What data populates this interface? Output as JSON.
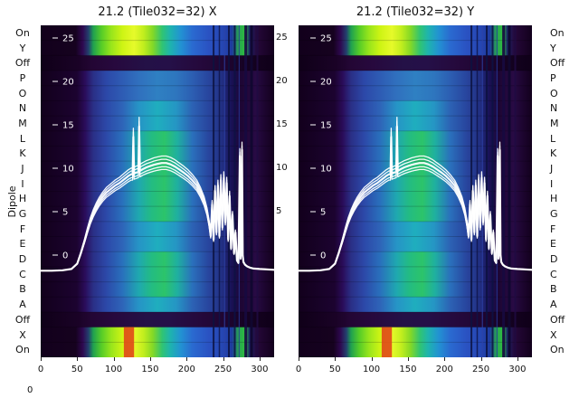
{
  "left_axis": {
    "label": "Dipole"
  },
  "dipole_labels": [
    "On",
    "Y",
    "Off",
    "P",
    "O",
    "N",
    "M",
    "L",
    "K",
    "J",
    "I",
    "H",
    "G",
    "F",
    "E",
    "D",
    "C",
    "B",
    "A",
    "Off",
    "X",
    "On"
  ],
  "bottom_left_label": "0",
  "chart_data": {
    "type": "heatmap",
    "panels": [
      {
        "title": "21.2 (Tile032=32) X"
      },
      {
        "title": "21.2 (Tile032=32) Y"
      }
    ],
    "x_ticks": [
      0,
      50,
      100,
      150,
      200,
      250,
      300
    ],
    "x_range": [
      0,
      320
    ],
    "power_ticks": [
      25,
      20,
      15,
      10,
      5,
      0
    ],
    "right_axis_ticks": [
      25,
      20,
      15,
      10,
      5
    ],
    "legend": "none",
    "grid": "off",
    "colors": {
      "line": "#ffffff",
      "bg": "#12001c"
    },
    "row_assignment": [
      "on",
      "on",
      "off",
      "mid1",
      "mid1",
      "mid2",
      "mid2",
      "mid3",
      "mid3",
      "mid3",
      "mid3",
      "mid3",
      "mid3",
      "mid2",
      "mid2",
      "mid3",
      "mid3",
      "mid3",
      "mid2",
      "off",
      "on",
      "on"
    ],
    "row_types": {
      "on": [
        [
          0.0,
          "#12001c"
        ],
        [
          0.15,
          "#16021f"
        ],
        [
          0.18,
          "#2e0850"
        ],
        [
          0.205,
          "#23406e"
        ],
        [
          0.225,
          "#1fa050"
        ],
        [
          0.26,
          "#55cc28"
        ],
        [
          0.3,
          "#96e41c"
        ],
        [
          0.35,
          "#cef414"
        ],
        [
          0.4,
          "#e6fa2a"
        ],
        [
          0.44,
          "#c2ee1e"
        ],
        [
          0.48,
          "#84d826"
        ],
        [
          0.52,
          "#30c472"
        ],
        [
          0.555,
          "#1eb4ae"
        ],
        [
          0.6,
          "#2292d2"
        ],
        [
          0.65,
          "#2a6ad0"
        ],
        [
          0.72,
          "#2a52c2"
        ],
        [
          0.78,
          "#2546b2"
        ],
        [
          0.82,
          "#1e3a9e"
        ],
        [
          0.845,
          "#26a055"
        ],
        [
          0.875,
          "#2fbe3f"
        ],
        [
          0.895,
          "#1b2468"
        ],
        [
          0.925,
          "#26083a"
        ],
        [
          1.0,
          "#12001c"
        ]
      ],
      "off": [
        [
          0.0,
          "#0f0018"
        ],
        [
          0.16,
          "#1a0226"
        ],
        [
          0.22,
          "#230634"
        ],
        [
          0.32,
          "#27093e"
        ],
        [
          0.45,
          "#241147"
        ],
        [
          0.55,
          "#251048"
        ],
        [
          0.68,
          "#25093c"
        ],
        [
          0.8,
          "#1e0530"
        ],
        [
          0.88,
          "#150222"
        ],
        [
          1.0,
          "#0f0018"
        ]
      ],
      "mid1": [
        [
          0.0,
          "#12001c"
        ],
        [
          0.155,
          "#1c0330"
        ],
        [
          0.19,
          "#2a0c5a"
        ],
        [
          0.225,
          "#2a2f86"
        ],
        [
          0.28,
          "#2c48a8"
        ],
        [
          0.35,
          "#2e5cb4"
        ],
        [
          0.42,
          "#3070be"
        ],
        [
          0.5,
          "#2f80c2"
        ],
        [
          0.58,
          "#2e76be"
        ],
        [
          0.65,
          "#2c5eb2"
        ],
        [
          0.72,
          "#28459e"
        ],
        [
          0.775,
          "#223084"
        ],
        [
          0.815,
          "#191258"
        ],
        [
          0.86,
          "#1e0634"
        ],
        [
          0.92,
          "#280a44"
        ],
        [
          1.0,
          "#12001c"
        ]
      ],
      "mid2": [
        [
          0.0,
          "#12001c"
        ],
        [
          0.155,
          "#1c0330"
        ],
        [
          0.19,
          "#2a0c5a"
        ],
        [
          0.225,
          "#2a2f86"
        ],
        [
          0.28,
          "#2c48a8"
        ],
        [
          0.35,
          "#2e64b8"
        ],
        [
          0.42,
          "#2694c6"
        ],
        [
          0.5,
          "#1faebe"
        ],
        [
          0.58,
          "#2596c4"
        ],
        [
          0.65,
          "#2c62b4"
        ],
        [
          0.72,
          "#28459e"
        ],
        [
          0.775,
          "#223084"
        ],
        [
          0.815,
          "#191258"
        ],
        [
          0.86,
          "#1e0634"
        ],
        [
          0.92,
          "#280a44"
        ],
        [
          1.0,
          "#12001c"
        ]
      ],
      "mid3": [
        [
          0.0,
          "#12001c"
        ],
        [
          0.155,
          "#1c0330"
        ],
        [
          0.19,
          "#2a0c5a"
        ],
        [
          0.225,
          "#2a2f86"
        ],
        [
          0.28,
          "#2c48a8"
        ],
        [
          0.35,
          "#2970bc"
        ],
        [
          0.42,
          "#1fa8b0"
        ],
        [
          0.475,
          "#23bc82"
        ],
        [
          0.53,
          "#2cc46a"
        ],
        [
          0.585,
          "#1fb0a0"
        ],
        [
          0.65,
          "#2a70bc"
        ],
        [
          0.72,
          "#28459e"
        ],
        [
          0.775,
          "#223084"
        ],
        [
          0.815,
          "#191258"
        ],
        [
          0.86,
          "#1e0634"
        ],
        [
          0.92,
          "#280a44"
        ],
        [
          1.0,
          "#12001c"
        ]
      ]
    },
    "artifacts": {
      "vlines": [
        {
          "x": 237,
          "color": "#0c1240",
          "w": 2,
          "o": 0.85
        },
        {
          "x": 245,
          "color": "#0e1448",
          "w": 1.5,
          "o": 0.8
        },
        {
          "x": 252,
          "color": "#2e44aa",
          "w": 1,
          "o": 0.9
        },
        {
          "x": 258,
          "color": "#0c1240",
          "w": 2,
          "o": 0.85
        },
        {
          "x": 266,
          "color": "#0d1244",
          "w": 2,
          "o": 0.85
        },
        {
          "x": 272,
          "color": "#26399a",
          "w": 1,
          "o": 0.9
        },
        {
          "x": 281,
          "color": "#160a40",
          "w": 3,
          "o": 0.9
        },
        {
          "x": 289,
          "color": "#100730",
          "w": 3,
          "o": 0.95
        },
        {
          "x": 297,
          "color": "#200b42",
          "w": 2,
          "o": 0.85
        }
      ],
      "spots": [
        {
          "x0": 114,
          "x1": 128,
          "row0": 20,
          "row1": 22,
          "color": "#e04818"
        }
      ]
    },
    "series": {
      "points": [
        [
          0,
          -1.8
        ],
        [
          15,
          -1.8
        ],
        [
          30,
          -1.75
        ],
        [
          42,
          -1.6
        ],
        [
          50,
          -1.0
        ],
        [
          55,
          0.2
        ],
        [
          60,
          1.6
        ],
        [
          64,
          2.8
        ],
        [
          68,
          3.9
        ],
        [
          72,
          4.8
        ],
        [
          76,
          5.5
        ],
        [
          80,
          6.1
        ],
        [
          85,
          6.7
        ],
        [
          90,
          7.2
        ],
        [
          96,
          7.6
        ],
        [
          102,
          8.0
        ],
        [
          108,
          8.3
        ],
        [
          114,
          8.7
        ],
        [
          120,
          9.1
        ],
        [
          124,
          9.3
        ],
        [
          126,
          9.3
        ],
        [
          127,
          13.6
        ],
        [
          128,
          9.4
        ],
        [
          131,
          9.5
        ],
        [
          134,
          9.6
        ],
        [
          135,
          14.8
        ],
        [
          136,
          9.7
        ],
        [
          140,
          9.9
        ],
        [
          145,
          10.1
        ],
        [
          150,
          10.25
        ],
        [
          155,
          10.4
        ],
        [
          160,
          10.5
        ],
        [
          166,
          10.6
        ],
        [
          172,
          10.6
        ],
        [
          178,
          10.45
        ],
        [
          184,
          10.2
        ],
        [
          190,
          9.85
        ],
        [
          196,
          9.5
        ],
        [
          202,
          9.1
        ],
        [
          208,
          8.6
        ],
        [
          214,
          8.0
        ],
        [
          219,
          7.2
        ],
        [
          224,
          6.2
        ],
        [
          228,
          5.0
        ],
        [
          231,
          3.6
        ],
        [
          233,
          2.2
        ],
        [
          235,
          5.8
        ],
        [
          237,
          1.8
        ],
        [
          239,
          7.4
        ],
        [
          241,
          2.6
        ],
        [
          243,
          8.0
        ],
        [
          245,
          2.2
        ],
        [
          247,
          8.6
        ],
        [
          249,
          3.2
        ],
        [
          251,
          8.9
        ],
        [
          253,
          3.8
        ],
        [
          255,
          8.3
        ],
        [
          257,
          1.8
        ],
        [
          259,
          6.8
        ],
        [
          261,
          0.8
        ],
        [
          263,
          4.6
        ],
        [
          265,
          0.2
        ],
        [
          267,
          2.6
        ],
        [
          269,
          -0.6
        ],
        [
          271,
          -0.9
        ],
        [
          272,
          5.0
        ],
        [
          273,
          11.4
        ],
        [
          274,
          -0.4
        ],
        [
          275,
          0.6
        ],
        [
          276,
          12.1
        ],
        [
          277,
          0.0
        ],
        [
          278,
          -0.8
        ],
        [
          280,
          -1.1
        ],
        [
          283,
          -1.3
        ],
        [
          287,
          -1.45
        ],
        [
          292,
          -1.55
        ],
        [
          300,
          -1.6
        ],
        [
          310,
          -1.65
        ],
        [
          320,
          -1.7
        ]
      ]
    },
    "bundle_offsets": [
      0,
      0.035,
      -0.035,
      0.065,
      -0.06
    ]
  }
}
